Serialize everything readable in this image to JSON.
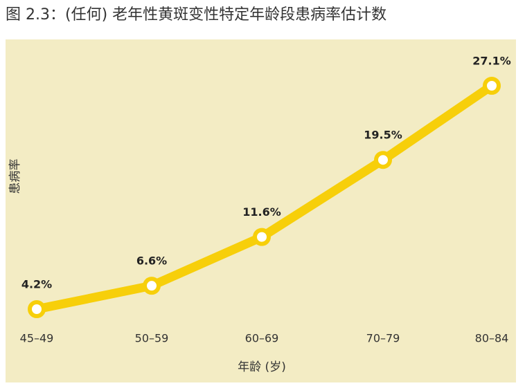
{
  "chart_data": {
    "type": "line",
    "title": "图 2.3：(任何) 老年性黄斑变性特定年龄段患病率估计数",
    "x_label": "年龄 (岁)",
    "y_label": "患病率",
    "categories": [
      "45–49",
      "50–59",
      "60–69",
      "70–79",
      "80–84"
    ],
    "values": [
      4.2,
      6.6,
      11.6,
      19.5,
      27.1
    ],
    "value_labels": [
      "4.2%",
      "6.6%",
      "11.6%",
      "19.5%",
      "27.1%"
    ],
    "color": "#f7cf0a",
    "background": "#f3ecc4"
  }
}
